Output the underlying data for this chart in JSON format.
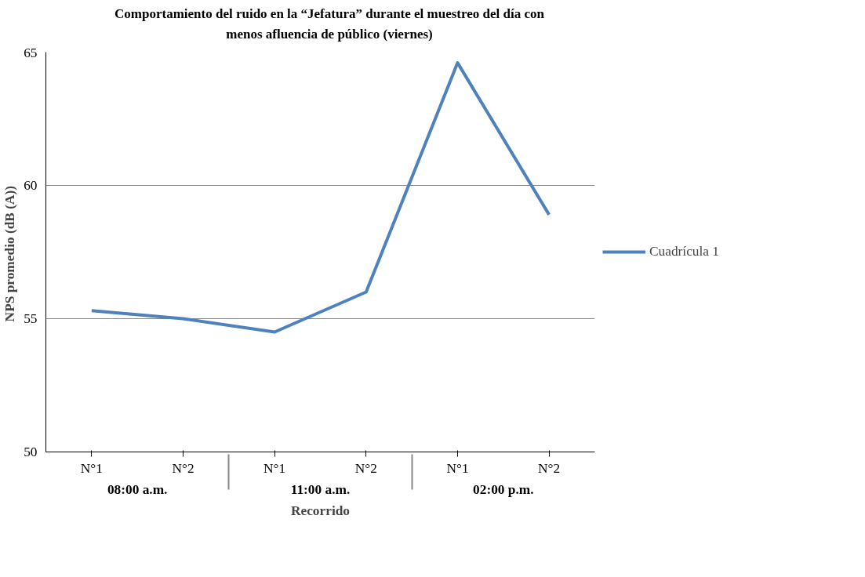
{
  "chart_data": {
    "type": "line",
    "title": "Comportamiento  del ruido  en la “Jefatura”  durante  el muestreo del día  con\nmenos  afluencia de público  (viernes)",
    "xlabel": "Recorrido",
    "ylabel": "NPS promedio  (dB (A))",
    "categories": [
      "N°1",
      "N°2",
      "N°1",
      "N°2",
      "N°1",
      "N°2"
    ],
    "annotations": [
      "08:00 a.m.",
      "11:00 a.m.",
      "02:00 p.m."
    ],
    "series": [
      {
        "name": "Cuadrícula 1",
        "color": "#4f81bd",
        "values": [
          55.3,
          55.0,
          54.5,
          56.0,
          64.6,
          58.9
        ]
      }
    ],
    "ylim": [
      50,
      65
    ],
    "yticks": [
      50,
      55,
      60,
      65
    ],
    "grid": "y",
    "legend": "right",
    "marker": "none"
  }
}
